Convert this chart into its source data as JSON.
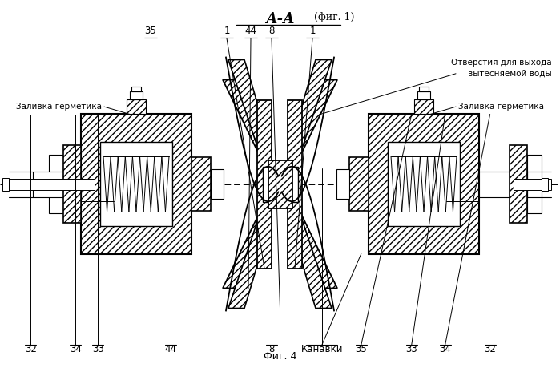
{
  "title": "А-А (фиг. 1)",
  "fig_label": "Фиг. 4",
  "bg": "#ffffff",
  "lc": "#1a1a1a",
  "bottom_labels": [
    [
      0.055,
      "32"
    ],
    [
      0.135,
      "34"
    ],
    [
      0.175,
      "33"
    ],
    [
      0.305,
      "44"
    ],
    [
      0.485,
      "8"
    ],
    [
      0.575,
      "Канавки"
    ],
    [
      0.645,
      "35"
    ],
    [
      0.735,
      "33"
    ],
    [
      0.795,
      "34"
    ],
    [
      0.875,
      "32"
    ]
  ],
  "top_labels": [
    [
      0.27,
      "35"
    ],
    [
      0.405,
      "1"
    ],
    [
      0.448,
      "44"
    ],
    [
      0.483,
      "8"
    ],
    [
      0.565,
      "1"
    ]
  ],
  "ann_left": "Заливка герметика",
  "ann_right": "Заливка герметика",
  "ann_holes": "Отверстия для выхода\nвытесняемой воды",
  "ann_grooves": "Канавки"
}
